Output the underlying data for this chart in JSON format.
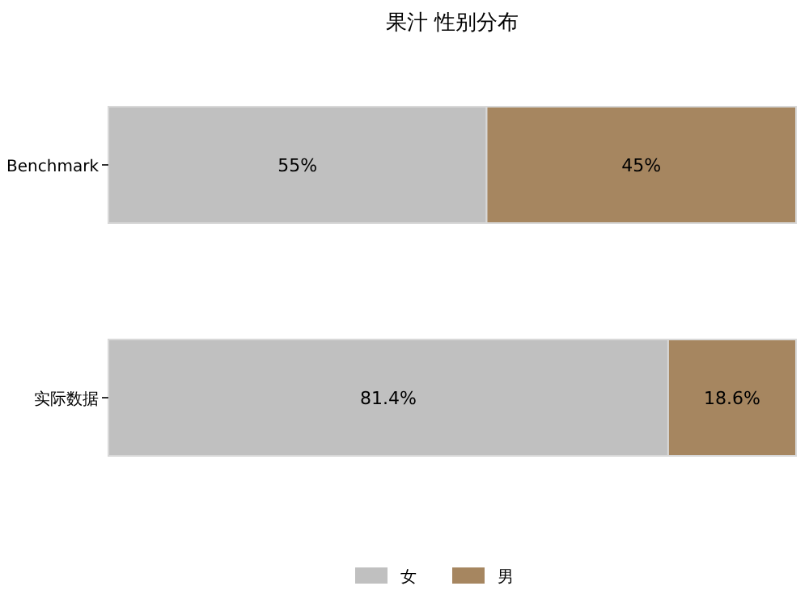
{
  "chart_data": {
    "type": "bar",
    "title": "果汁 性别分布",
    "orientation": "horizontal",
    "stacked": true,
    "categories": [
      "Benchmark",
      "实际数据"
    ],
    "series": [
      {
        "name": "女",
        "color": "#c0c0c0",
        "values": [
          55,
          81.4
        ],
        "value_labels": [
          "55%",
          "81.4%"
        ]
      },
      {
        "name": "男",
        "color": "#a68660",
        "values": [
          45,
          18.6
        ],
        "value_labels": [
          "45%",
          "18.6%"
        ]
      }
    ],
    "xlim": [
      0,
      100
    ],
    "tick_labels": "y",
    "legend": "bottom"
  }
}
